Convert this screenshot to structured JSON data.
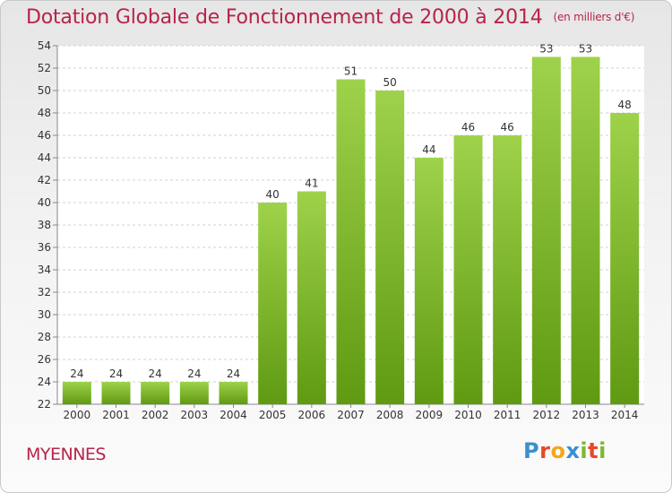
{
  "chart_data": {
    "type": "bar",
    "title": "Dotation Globale de Fonctionnement de 2000 à 2014",
    "subtitle": "(en milliers d'€)",
    "categories": [
      "2000",
      "2001",
      "2002",
      "2003",
      "2004",
      "2005",
      "2006",
      "2007",
      "2008",
      "2009",
      "2010",
      "2011",
      "2012",
      "2013",
      "2014"
    ],
    "values": [
      24,
      24,
      24,
      24,
      24,
      40,
      41,
      51,
      50,
      44,
      46,
      46,
      53,
      53,
      48
    ],
    "ylim": [
      22,
      54
    ],
    "yticks": [
      22,
      24,
      26,
      28,
      30,
      32,
      34,
      36,
      38,
      40,
      42,
      44,
      46,
      48,
      50,
      52,
      54
    ],
    "grid": true,
    "colors": {
      "bar_light": "#9ed24a",
      "bar_dark": "#5f9a12",
      "title": "#b8234a",
      "grid": "#d2d2d2"
    }
  },
  "commune": "MYENNES",
  "logo": {
    "text": "Proxiti",
    "letters": [
      {
        "char": "P",
        "color": "#3a8fd0"
      },
      {
        "char": "r",
        "color": "#e8482a"
      },
      {
        "char": "o",
        "color": "#f2a81c"
      },
      {
        "char": "x",
        "color": "#3a8fd0"
      },
      {
        "char": "i",
        "color": "#7cb831"
      },
      {
        "char": "t",
        "color": "#e8482a"
      },
      {
        "char": "i",
        "color": "#7cb831"
      }
    ]
  }
}
